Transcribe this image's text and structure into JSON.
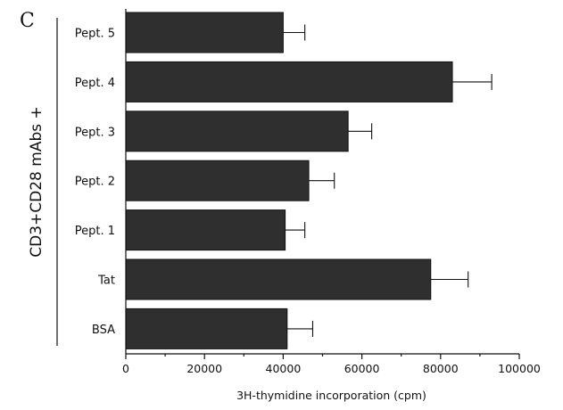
{
  "panel_label": "C",
  "group_label": "CD3+CD28 mAbs +",
  "chart_data": {
    "type": "bar",
    "orientation": "horizontal",
    "categories": [
      "Pept. 5",
      "Pept. 4",
      "Pept. 3",
      "Pept. 2",
      "Pept. 1",
      "Tat",
      "BSA"
    ],
    "values": [
      40000,
      83000,
      56500,
      46500,
      40500,
      77500,
      41000
    ],
    "errors": [
      5500,
      10000,
      6000,
      6500,
      5000,
      9500,
      6500
    ],
    "xlabel": "3H-thymidine incorporation (cpm)",
    "xlim": [
      0,
      100000
    ],
    "xticks": [
      0,
      20000,
      40000,
      60000,
      80000,
      100000
    ],
    "xtick_labels": [
      "0",
      "20000",
      "40000",
      "60000",
      "80000",
      "100000"
    ],
    "bar_color": "#2f2f2f",
    "grid": false
  }
}
